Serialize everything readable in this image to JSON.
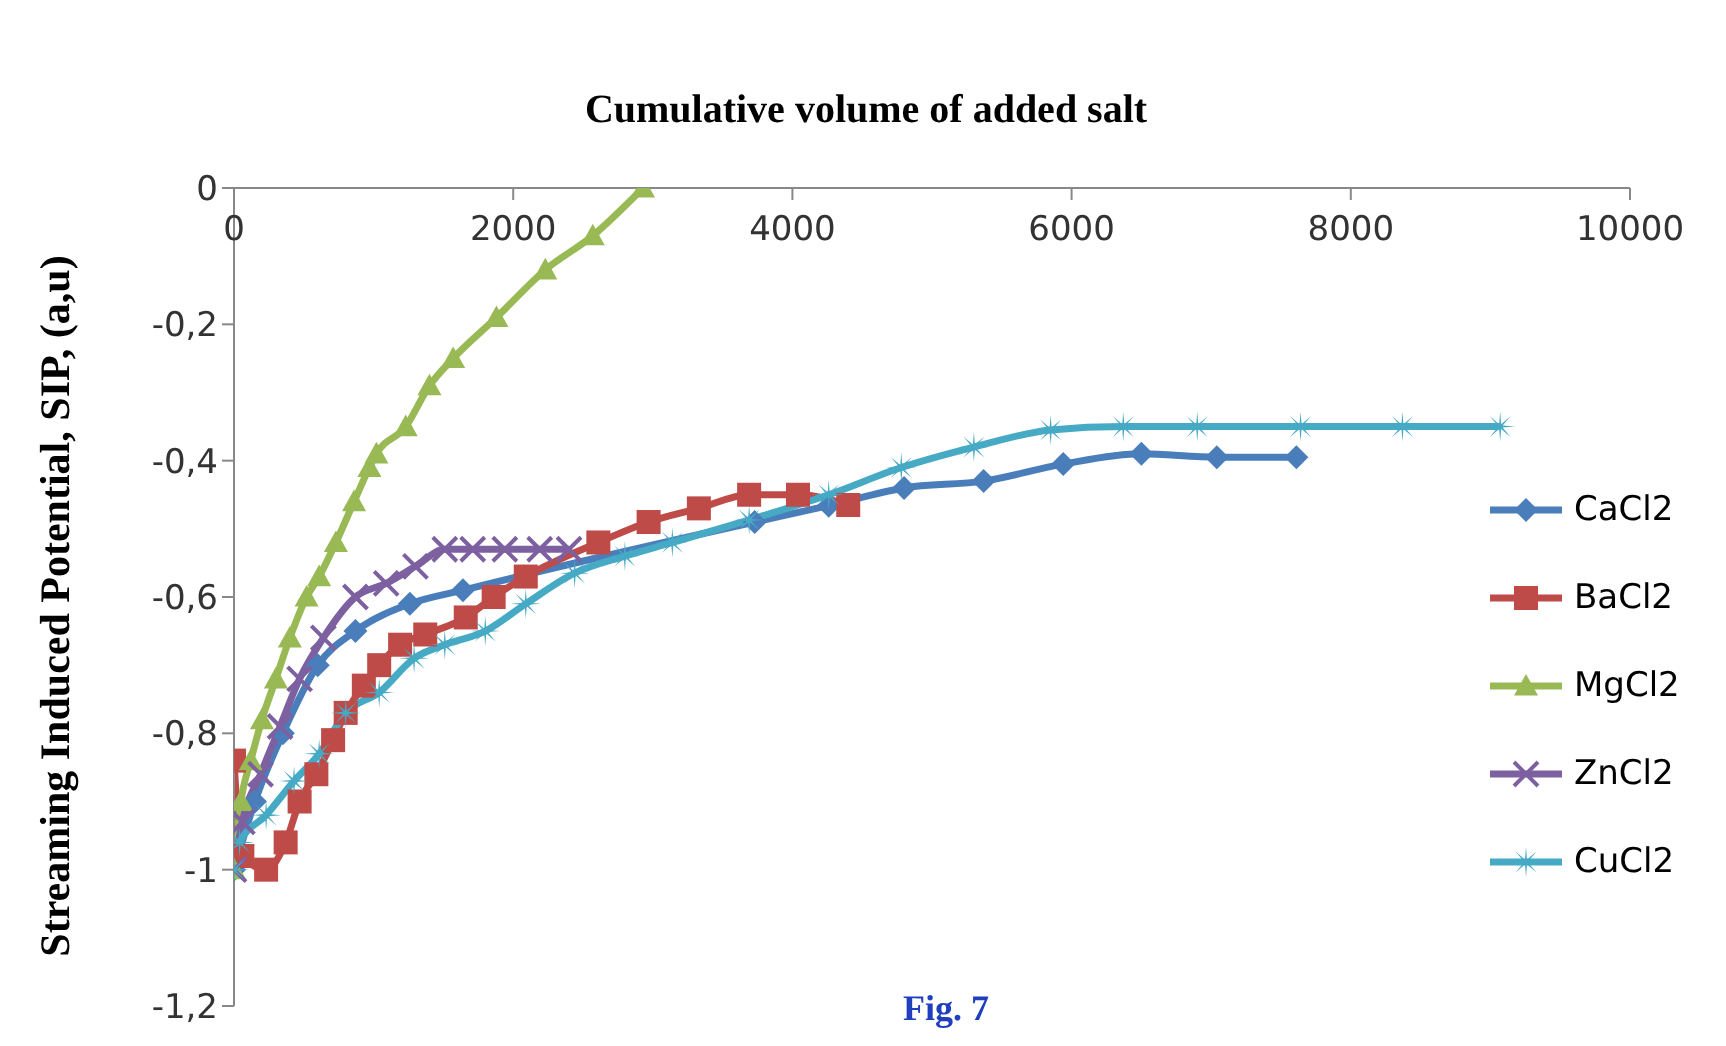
{
  "chart_data": {
    "type": "line",
    "title": "Cumulative volume of added salt",
    "ylabel": "Streaming Induced Potential, SIP, (a,u)",
    "annotations": [
      "Fig. 7"
    ],
    "xlim": [
      0,
      10000
    ],
    "xticks": [
      0,
      2000,
      4000,
      6000,
      8000,
      10000
    ],
    "ylim": [
      -1.2,
      0
    ],
    "yticks": [
      0,
      {
        "value": -0.2,
        "label": "-0,2"
      },
      {
        "value": -0.4,
        "label": "-0,4"
      },
      {
        "value": -0.6,
        "label": "-0,6"
      },
      {
        "value": -0.8,
        "label": "-0,8"
      },
      -1,
      {
        "value": -1.2,
        "label": "-1,2"
      }
    ],
    "legend": "right",
    "grid": false,
    "line_style": "solid",
    "series": [
      {
        "name": "CaCl2",
        "color": "#4a7ebb",
        "marker": "diamond",
        "x": [
          0,
          150,
          350,
          600,
          870,
          1260,
          1640,
          3730,
          4260,
          4800,
          5370,
          5940,
          6500,
          7040,
          7610
        ],
        "values": [
          -1,
          -0.9,
          -0.8,
          -0.7,
          -0.65,
          -0.61,
          -0.59,
          -0.49,
          -0.466,
          -0.44,
          -0.43,
          -0.405,
          -0.39,
          -0.395,
          -0.395
        ]
      },
      {
        "name": "BaCl2",
        "color": "#be4b48",
        "marker": "square",
        "x": [
          0,
          60,
          230,
          370,
          470,
          590,
          710,
          800,
          930,
          1040,
          1190,
          1370,
          1660,
          1860,
          2090,
          2610,
          2970,
          3330,
          3690,
          4040,
          4400
        ],
        "values": [
          -0.84,
          -0.98,
          -1,
          -0.96,
          -0.9,
          -0.86,
          -0.81,
          -0.77,
          -0.73,
          -0.7,
          -0.67,
          -0.655,
          -0.63,
          -0.6,
          -0.57,
          -0.52,
          -0.49,
          -0.47,
          -0.45,
          -0.45,
          -0.465
        ]
      },
      {
        "name": "MgCl2",
        "color": "#98b954",
        "marker": "triangle",
        "x": [
          0,
          50,
          120,
          200,
          300,
          400,
          520,
          610,
          730,
          860,
          970,
          1020,
          1230,
          1400,
          1570,
          1880,
          2230,
          2570,
          2930
        ],
        "values": [
          -1,
          -0.9,
          -0.84,
          -0.78,
          -0.72,
          -0.66,
          -0.6,
          -0.57,
          -0.52,
          -0.46,
          -0.41,
          -0.39,
          -0.35,
          -0.29,
          -0.25,
          -0.19,
          -0.12,
          -0.07,
          0
        ]
      },
      {
        "name": "ZnCl2",
        "color": "#7d60a0",
        "marker": "cross",
        "x": [
          0,
          60,
          190,
          330,
          470,
          640,
          870,
          1090,
          1300,
          1510,
          1710,
          1940,
          2190,
          2400
        ],
        "values": [
          -1,
          -0.93,
          -0.86,
          -0.79,
          -0.72,
          -0.66,
          -0.6,
          -0.58,
          -0.555,
          -0.53,
          -0.53,
          -0.53,
          -0.53,
          -0.53
        ]
      },
      {
        "name": "CuCl2",
        "color": "#46aac5",
        "marker": "star",
        "x": [
          0,
          40,
          230,
          430,
          610,
          800,
          1040,
          1290,
          1510,
          1800,
          2090,
          2440,
          2800,
          3140,
          3690,
          4260,
          4780,
          5300,
          5850,
          6370,
          6900,
          7640,
          8370,
          9070
        ],
        "values": [
          -1,
          -0.96,
          -0.92,
          -0.87,
          -0.83,
          -0.77,
          -0.74,
          -0.69,
          -0.67,
          -0.65,
          -0.61,
          -0.565,
          -0.54,
          -0.52,
          -0.487,
          -0.45,
          -0.41,
          -0.38,
          -0.355,
          -0.35,
          -0.35,
          -0.35,
          -0.35,
          -0.35
        ]
      }
    ]
  }
}
